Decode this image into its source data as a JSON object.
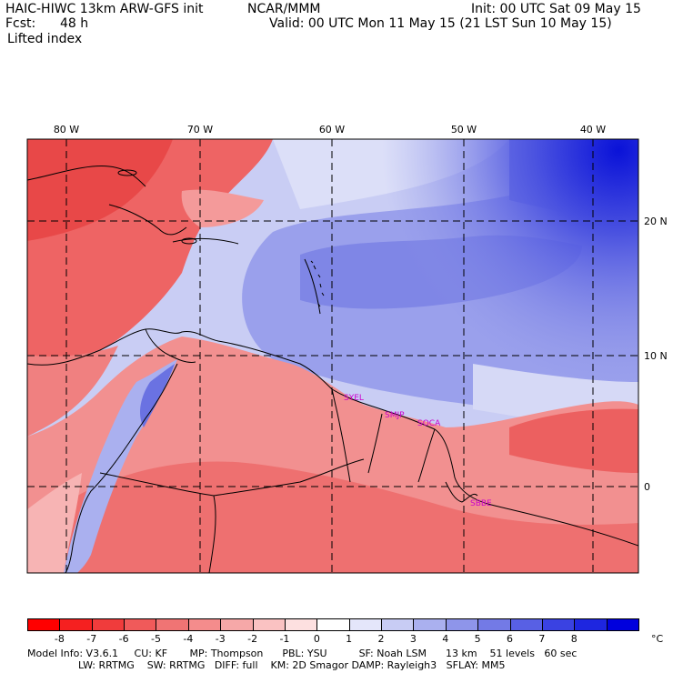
{
  "header": {
    "title": "HAIC-HIWC 13km ARW-GFS init",
    "org": "NCAR/MMM",
    "init": "Init: 00 UTC Sat 09 May 15",
    "fcst_label": "Fcst:",
    "fcst_value": "48 h",
    "valid": "Valid: 00 UTC Mon 11 May 15 (21 LST Sun 10 May 15)",
    "field": "Lifted index"
  },
  "map": {
    "lon_labels": [
      "80 W",
      "70 W",
      "60 W",
      "50 W",
      "40 W"
    ],
    "lat_labels": [
      "20 N",
      "10 N",
      "0"
    ],
    "stations": [
      "SYEL",
      "SMJP",
      "SOCA",
      "SBBE"
    ],
    "colors": {
      "ocean_stable": "#8f95e8",
      "ocean_light": "#d2d5f6",
      "land_unstable": "#f08a8a",
      "caribbean_unstable": "#ec5a5a",
      "station": "#cc00cc"
    }
  },
  "colorbar": {
    "ticks": [
      "-8",
      "-7",
      "-6",
      "-5",
      "-4",
      "-3",
      "-2",
      "-1",
      "0",
      "1",
      "2",
      "3",
      "4",
      "5",
      "6",
      "7",
      "8"
    ],
    "unit": "°C",
    "colors": [
      "#ff0000",
      "#f52020",
      "#f03c3c",
      "#f05a5a",
      "#f07474",
      "#f48c8c",
      "#f6a8a8",
      "#fac2c2",
      "#fde0e0",
      "#ffffff",
      "#e4e6fa",
      "#c8ccf4",
      "#aab0ef",
      "#8e95ea",
      "#737ae6",
      "#5860e4",
      "#3a42e2",
      "#1e26e0",
      "#0000dd"
    ]
  },
  "footer": {
    "line1": "Model Info: V3.6.1     CU: KF       MP: Thompson      PBL: YSU          SF: Noah LSM      13 km    51 levels   60 sec",
    "line2": "                LW: RRTMG    SW: RRTMG   DIFF: full    KM: 2D Smagor DAMP: Rayleigh3   SFLAY: MM5"
  }
}
